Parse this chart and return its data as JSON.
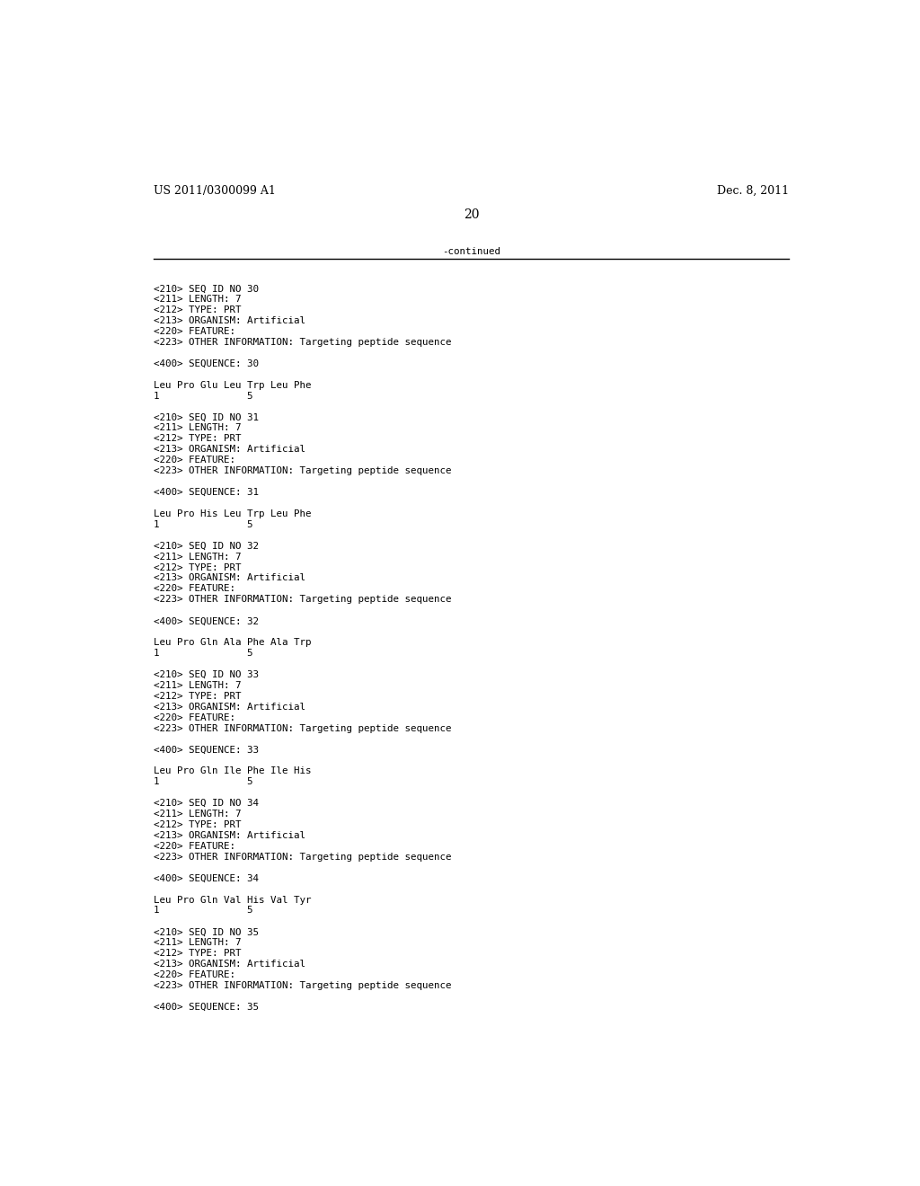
{
  "header_left": "US 2011/0300099 A1",
  "header_right": "Dec. 8, 2011",
  "page_number": "20",
  "continued_text": "-continued",
  "background_color": "#ffffff",
  "text_color": "#000000",
  "font_size_header": 9.0,
  "font_size_page": 10.0,
  "font_size_mono": 7.8,
  "sections": [
    {
      "lines": [
        "<210> SEQ ID NO 30",
        "<211> LENGTH: 7",
        "<212> TYPE: PRT",
        "<213> ORGANISM: Artificial",
        "<220> FEATURE:",
        "<223> OTHER INFORMATION: Targeting peptide sequence",
        "",
        "<400> SEQUENCE: 30",
        "",
        "Leu Pro Glu Leu Trp Leu Phe",
        "1               5"
      ]
    },
    {
      "lines": [
        "<210> SEQ ID NO 31",
        "<211> LENGTH: 7",
        "<212> TYPE: PRT",
        "<213> ORGANISM: Artificial",
        "<220> FEATURE:",
        "<223> OTHER INFORMATION: Targeting peptide sequence",
        "",
        "<400> SEQUENCE: 31",
        "",
        "Leu Pro His Leu Trp Leu Phe",
        "1               5"
      ]
    },
    {
      "lines": [
        "<210> SEQ ID NO 32",
        "<211> LENGTH: 7",
        "<212> TYPE: PRT",
        "<213> ORGANISM: Artificial",
        "<220> FEATURE:",
        "<223> OTHER INFORMATION: Targeting peptide sequence",
        "",
        "<400> SEQUENCE: 32",
        "",
        "Leu Pro Gln Ala Phe Ala Trp",
        "1               5"
      ]
    },
    {
      "lines": [
        "<210> SEQ ID NO 33",
        "<211> LENGTH: 7",
        "<212> TYPE: PRT",
        "<213> ORGANISM: Artificial",
        "<220> FEATURE:",
        "<223> OTHER INFORMATION: Targeting peptide sequence",
        "",
        "<400> SEQUENCE: 33",
        "",
        "Leu Pro Gln Ile Phe Ile His",
        "1               5"
      ]
    },
    {
      "lines": [
        "<210> SEQ ID NO 34",
        "<211> LENGTH: 7",
        "<212> TYPE: PRT",
        "<213> ORGANISM: Artificial",
        "<220> FEATURE:",
        "<223> OTHER INFORMATION: Targeting peptide sequence",
        "",
        "<400> SEQUENCE: 34",
        "",
        "Leu Pro Gln Val His Val Tyr",
        "1               5"
      ]
    },
    {
      "lines": [
        "<210> SEQ ID NO 35",
        "<211> LENGTH: 7",
        "<212> TYPE: PRT",
        "<213> ORGANISM: Artificial",
        "<220> FEATURE:",
        "<223> OTHER INFORMATION: Targeting peptide sequence",
        "",
        "<400> SEQUENCE: 35"
      ]
    }
  ]
}
